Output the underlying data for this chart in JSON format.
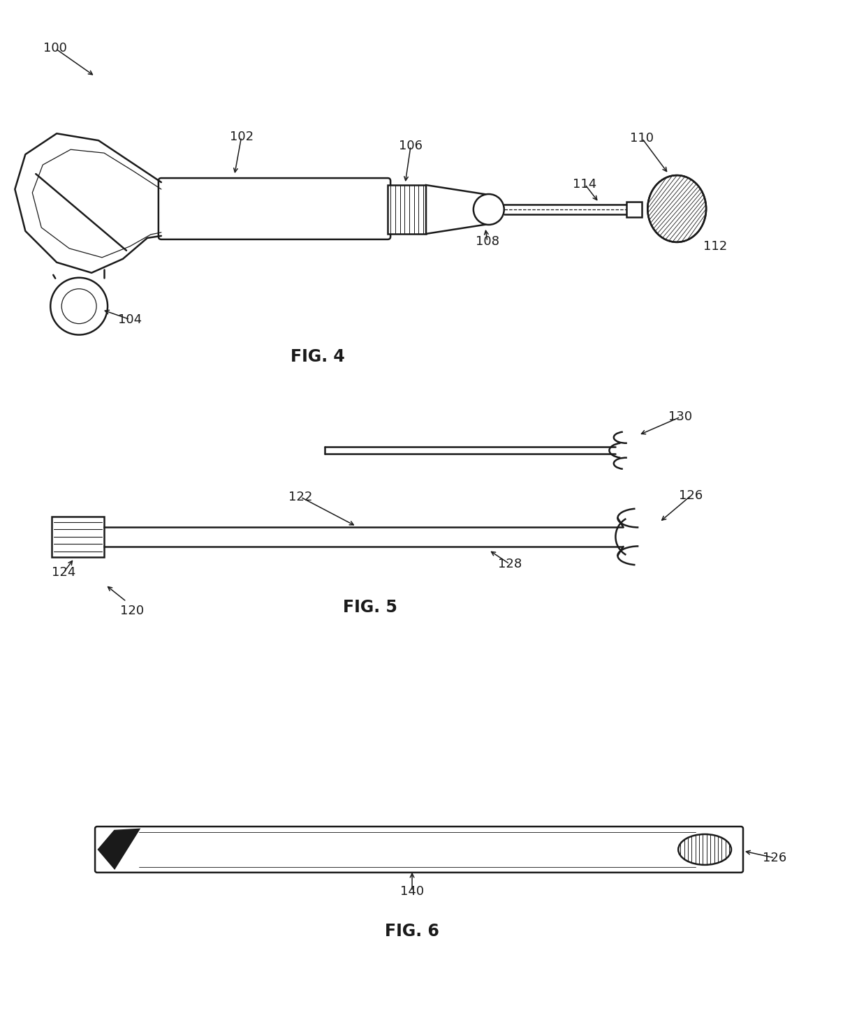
{
  "bg_color": "#ffffff",
  "line_color": "#1a1a1a",
  "fig_width": 12.4,
  "fig_height": 14.74,
  "fig4_label": "FIG. 4",
  "fig5_label": "FIG. 5",
  "fig6_label": "FIG. 6",
  "label_100": "100",
  "label_102": "102",
  "label_104": "104",
  "label_106": "106",
  "label_108": "108",
  "label_110": "110",
  "label_112": "112",
  "label_114": "114",
  "label_120": "120",
  "label_122": "122",
  "label_124": "124",
  "label_126": "126",
  "label_128": "128",
  "label_130": "130",
  "label_140": "140",
  "lw_main": 1.8,
  "lw_thin": 0.9,
  "fs_label": 13
}
